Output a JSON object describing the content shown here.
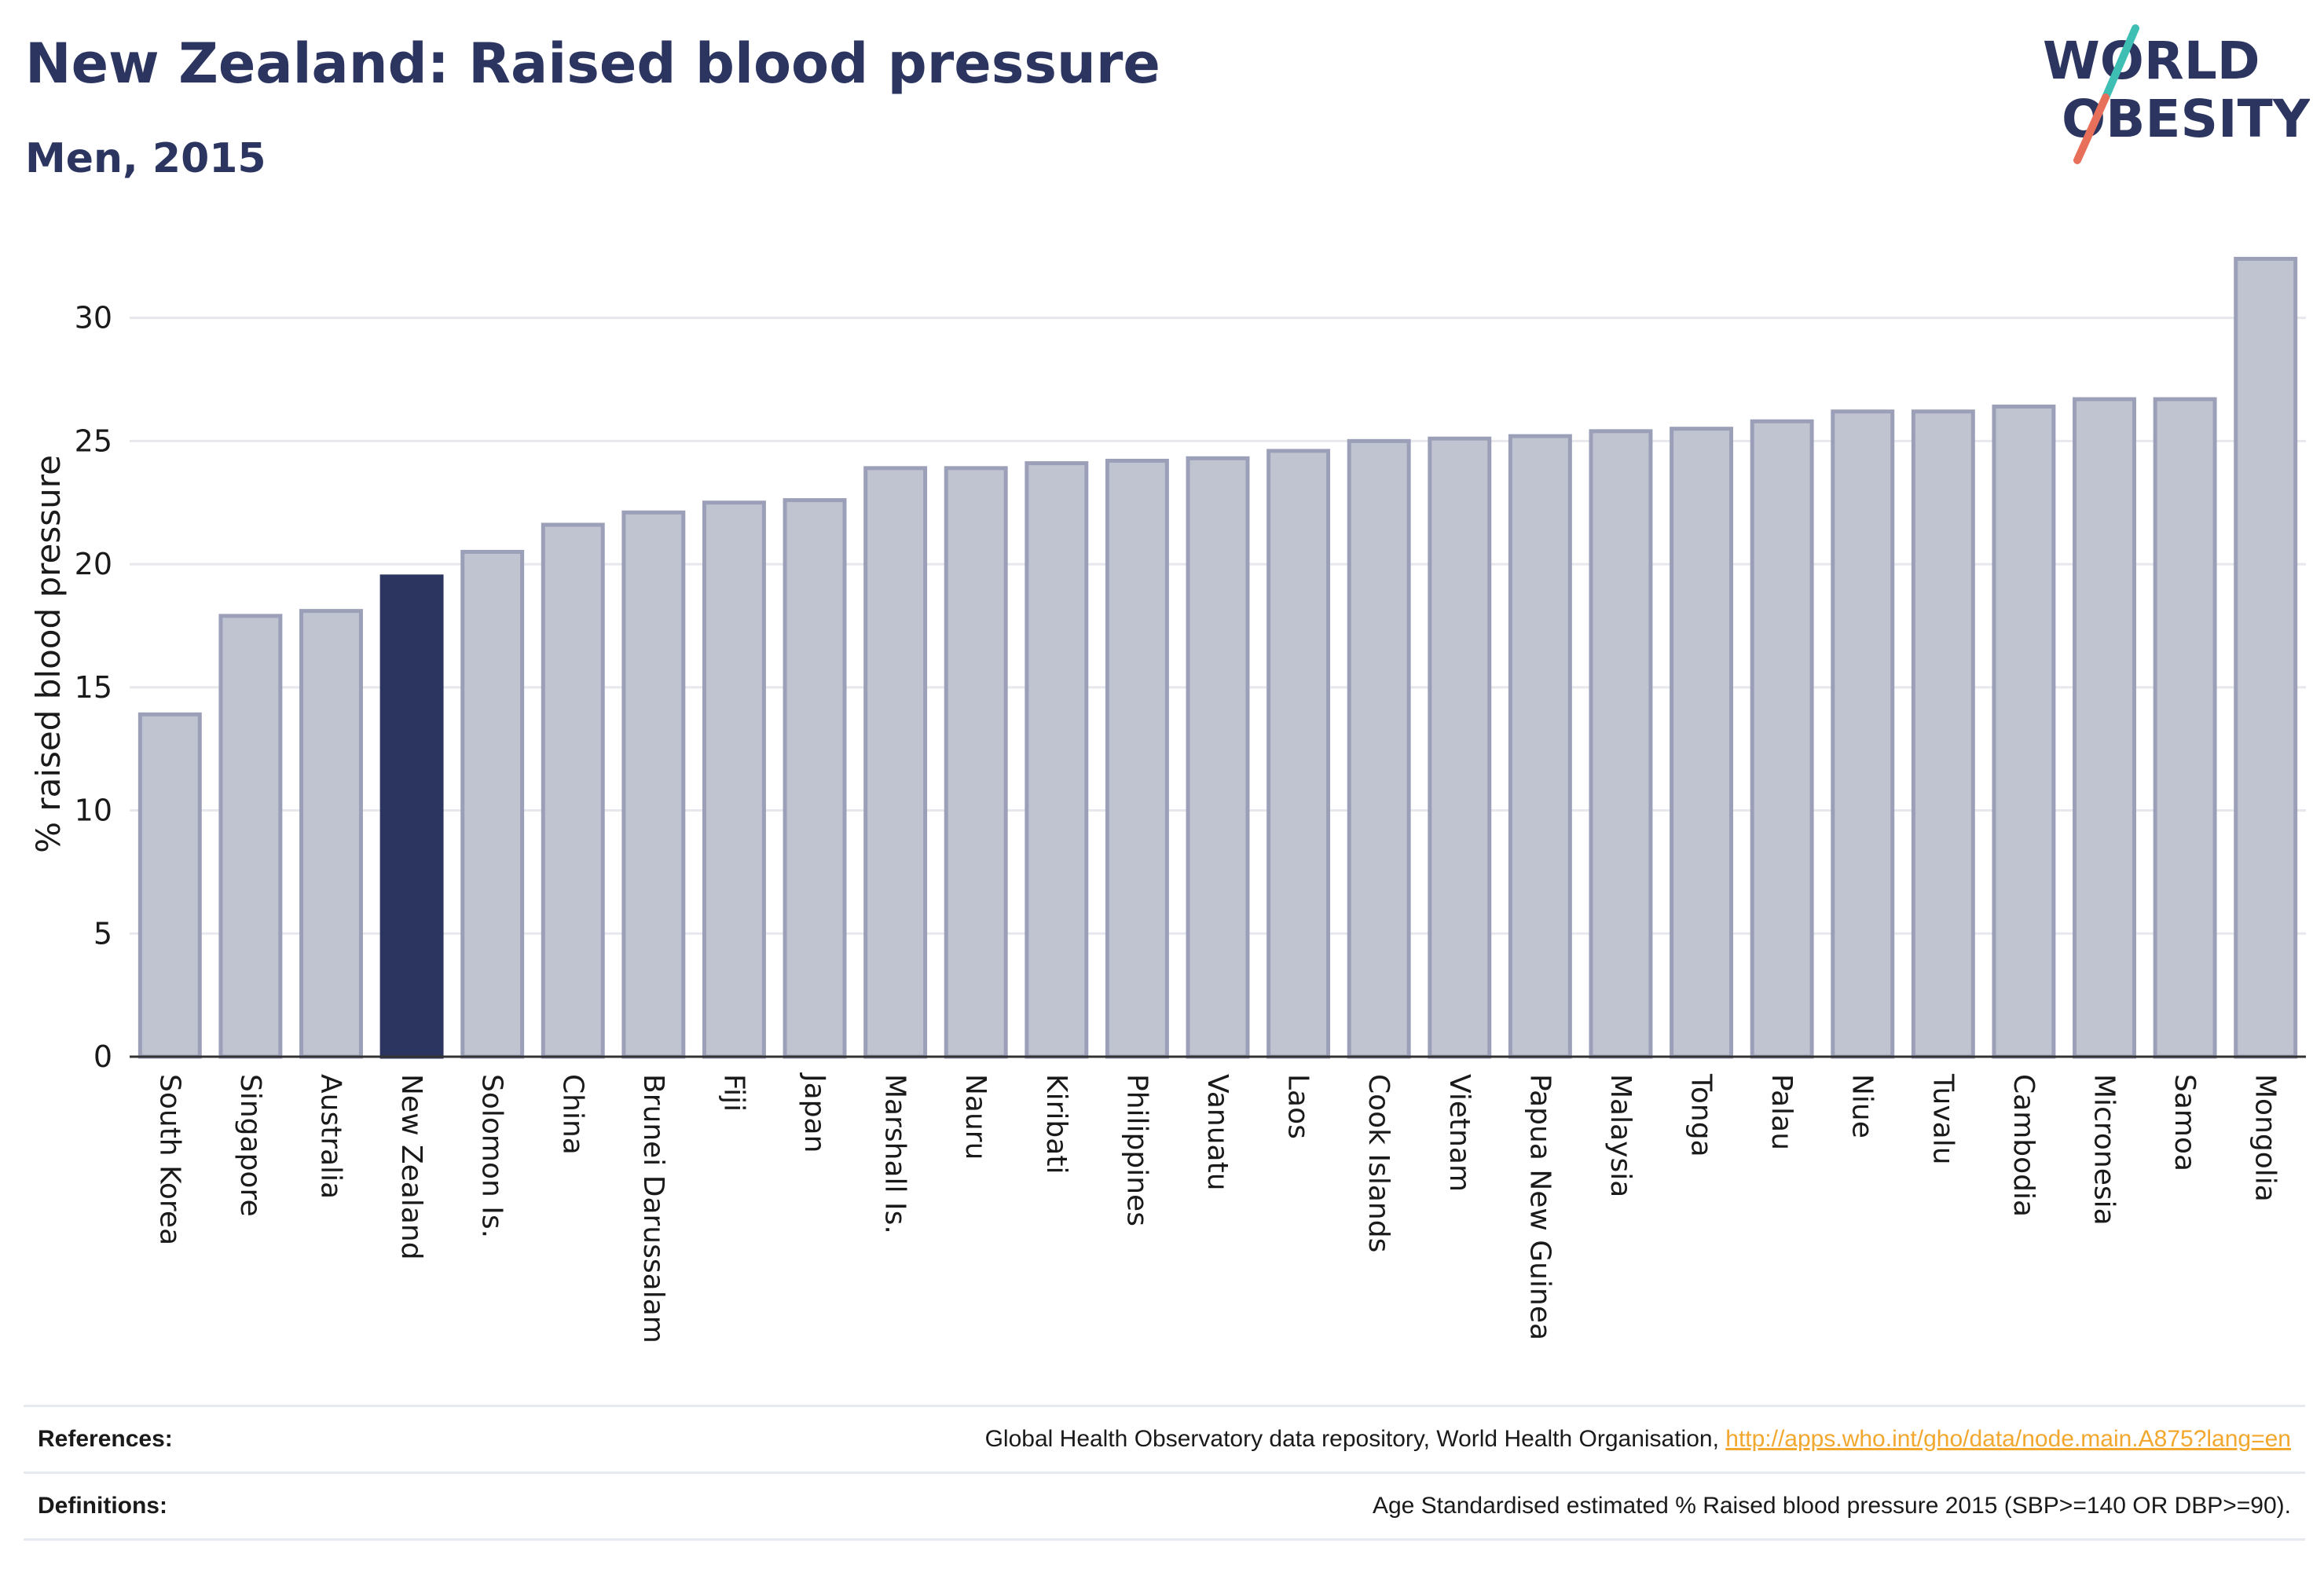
{
  "header": {
    "title": "New Zealand: Raised blood pressure",
    "subtitle": "Men, 2015"
  },
  "logo": {
    "line1": "WORLD",
    "line2": "OBESITY",
    "colors": {
      "text": "#2b3560",
      "slash_teal": "#3fbfb4",
      "slash_coral": "#e8705a"
    }
  },
  "colors": {
    "bar": "#c0c3d0",
    "bar_edge": "#9ba0b8",
    "highlight": "#2b3560",
    "grid": "#e7e8ee",
    "axis": "#333333",
    "text": "#1a1a1a"
  },
  "chart_data": {
    "type": "bar",
    "ylabel": "% raised blood pressure",
    "ylim": [
      0,
      32.7
    ],
    "yticks": [
      0,
      5,
      10,
      15,
      20,
      25,
      30
    ],
    "grid": true,
    "highlight": "New Zealand",
    "categories": [
      "South Korea",
      "Singapore",
      "Australia",
      "New Zealand",
      "Solomon Is.",
      "China",
      "Brunei Darussalam",
      "Fiji",
      "Japan",
      "Marshall Is.",
      "Nauru",
      "Kiribati",
      "Philippines",
      "Vanuatu",
      "Laos",
      "Cook Islands",
      "Vietnam",
      "Papua New Guinea",
      "Malaysia",
      "Tonga",
      "Palau",
      "Niue",
      "Tuvalu",
      "Cambodia",
      "Micronesia",
      "Samoa",
      "Mongolia"
    ],
    "values": [
      13.9,
      17.9,
      18.1,
      19.5,
      20.5,
      21.6,
      22.1,
      22.5,
      22.6,
      23.9,
      23.9,
      24.1,
      24.2,
      24.3,
      24.6,
      25.0,
      25.1,
      25.2,
      25.4,
      25.5,
      25.8,
      26.2,
      26.2,
      26.4,
      26.7,
      26.7,
      32.4
    ]
  },
  "footer": {
    "references_label": "References:",
    "references_text": "Global Health Observatory data repository, World Health Organisation, ",
    "references_link": "http://apps.who.int/gho/data/node.main.A875?lang=en",
    "definitions_label": "Definitions:",
    "definitions_text": "Age Standardised estimated % Raised blood pressure 2015 (SBP>=140 OR DBP>=90)."
  }
}
